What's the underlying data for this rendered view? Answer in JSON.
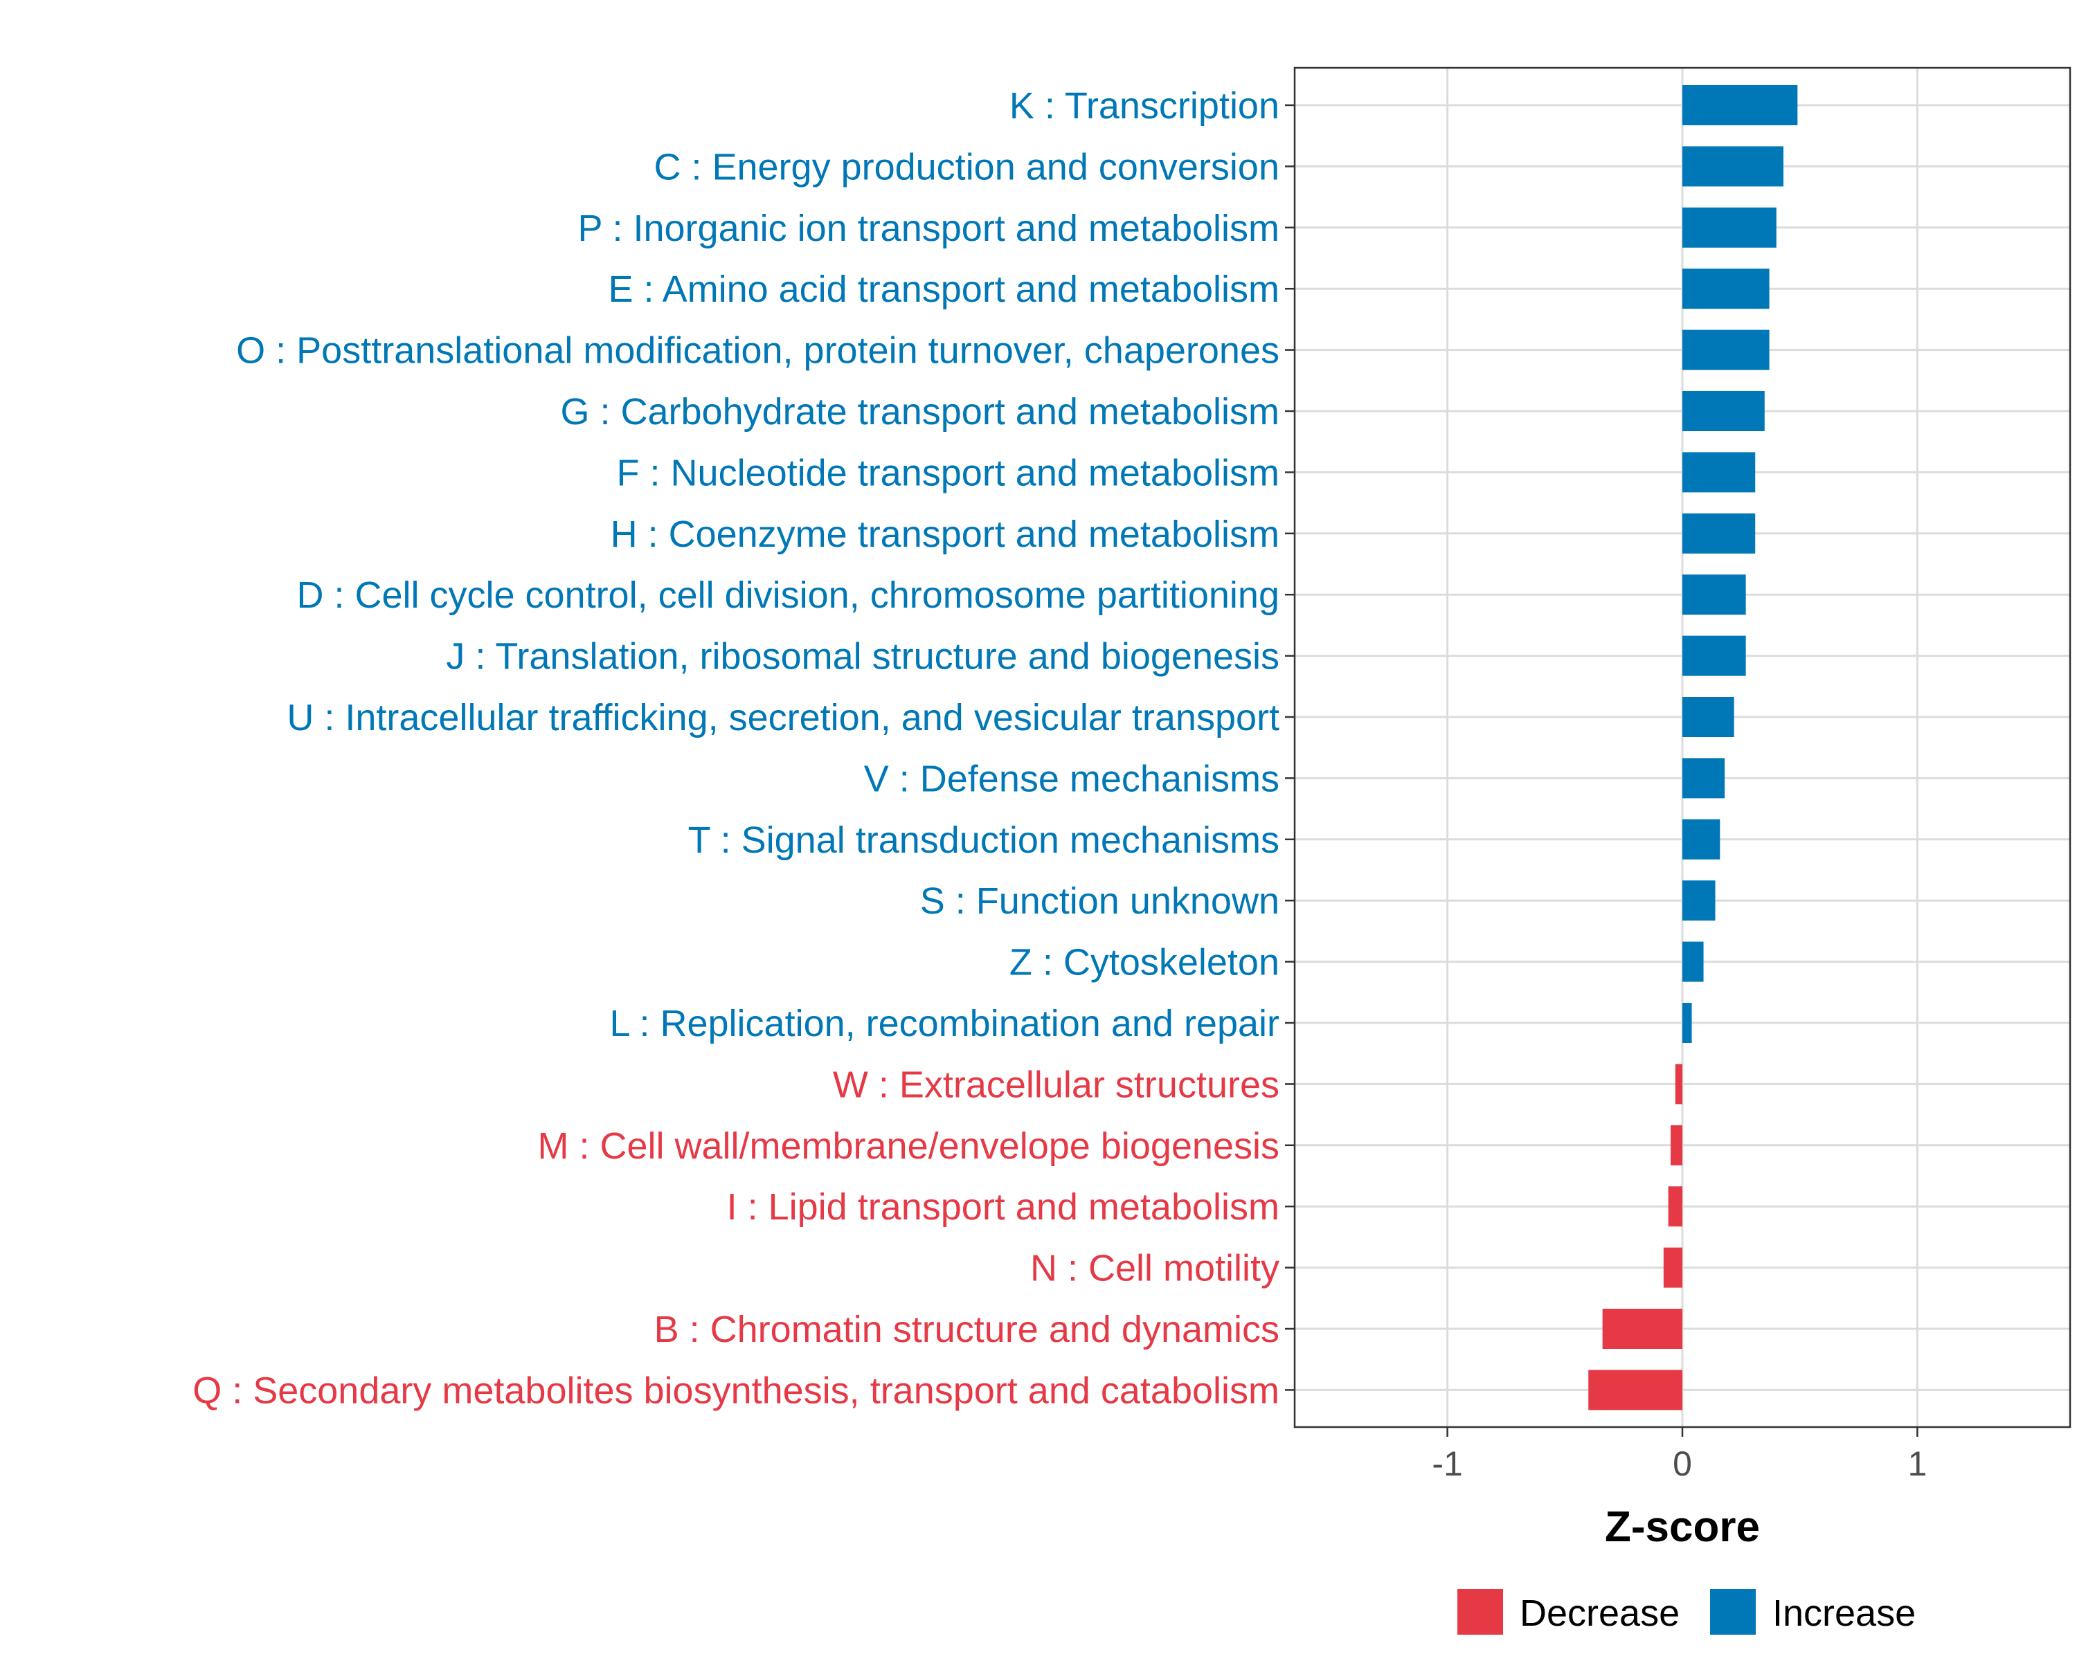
{
  "chart_data": {
    "type": "bar",
    "orientation": "horizontal",
    "title": "",
    "xlabel": "Z-score",
    "ylabel": "",
    "xlim": [
      -1.65,
      1.65
    ],
    "x_ticks": [
      -1,
      0,
      1
    ],
    "x_tick_labels": [
      "-1",
      "0",
      "1"
    ],
    "grid": true,
    "legend_position": "bottom",
    "colors": {
      "Decrease": "#E63946",
      "Increase": "#0077B6"
    },
    "categories": [
      "K : Transcription",
      "C : Energy production and conversion",
      "P : Inorganic ion transport and metabolism",
      "E : Amino acid transport and metabolism",
      "O : Posttranslational modification, protein turnover, chaperones",
      "G : Carbohydrate transport and metabolism",
      "F : Nucleotide transport and metabolism",
      "H : Coenzyme transport and metabolism",
      "D : Cell cycle control, cell division, chromosome partitioning",
      "J : Translation, ribosomal structure and biogenesis",
      "U : Intracellular trafficking, secretion, and vesicular transport",
      "V : Defense mechanisms",
      "T : Signal transduction mechanisms",
      "S : Function unknown",
      "Z : Cytoskeleton",
      "L : Replication, recombination and repair",
      "W : Extracellular structures",
      "M : Cell wall/membrane/envelope biogenesis",
      "I : Lipid transport and metabolism",
      "N : Cell motility",
      "B : Chromatin structure and dynamics",
      "Q : Secondary metabolites biosynthesis, transport and catabolism"
    ],
    "values": [
      0.49,
      0.43,
      0.4,
      0.37,
      0.37,
      0.35,
      0.31,
      0.31,
      0.27,
      0.27,
      0.22,
      0.18,
      0.16,
      0.14,
      0.09,
      0.04,
      -0.03,
      -0.05,
      -0.06,
      -0.08,
      -0.34,
      -0.4
    ],
    "groups": [
      "Increase",
      "Increase",
      "Increase",
      "Increase",
      "Increase",
      "Increase",
      "Increase",
      "Increase",
      "Increase",
      "Increase",
      "Increase",
      "Increase",
      "Increase",
      "Increase",
      "Increase",
      "Increase",
      "Decrease",
      "Decrease",
      "Decrease",
      "Decrease",
      "Decrease",
      "Decrease"
    ],
    "legend": [
      "Decrease",
      "Increase"
    ]
  }
}
